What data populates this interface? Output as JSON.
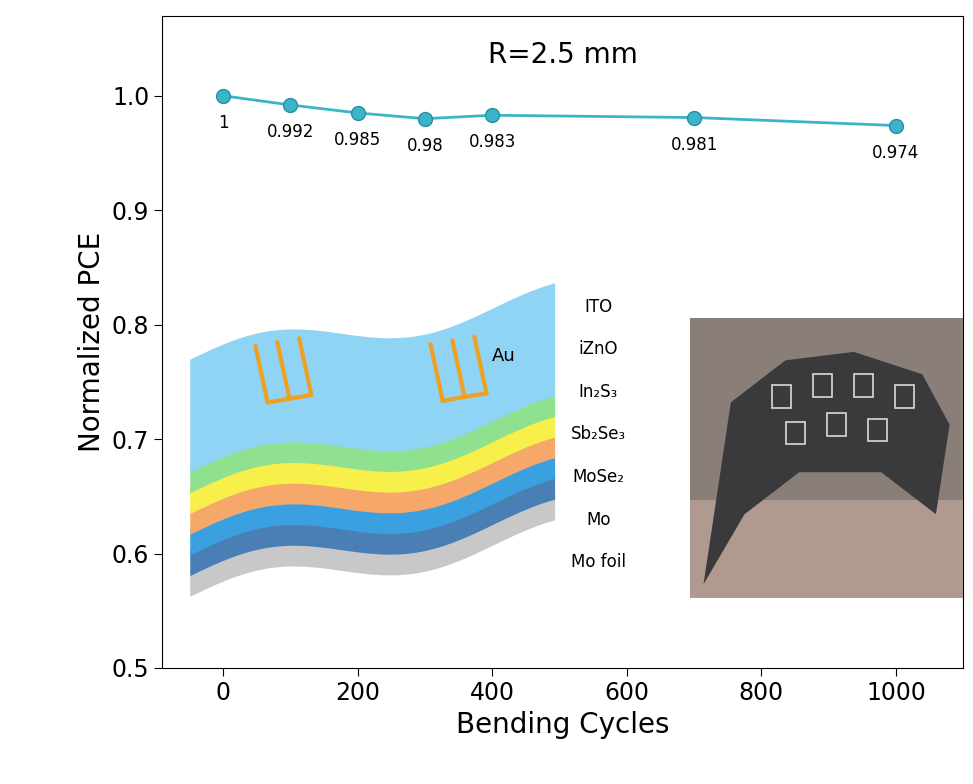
{
  "chart_data": {
    "type": "line",
    "title": "R=2.5 mm",
    "x_label": "Bending Cycles",
    "y_label": "Normalized PCE",
    "x": [
      0,
      100,
      200,
      300,
      400,
      700,
      1000
    ],
    "values": [
      1,
      0.992,
      0.985,
      0.98,
      0.983,
      0.981,
      0.974
    ],
    "color": "#3cb4c8",
    "marker": "o",
    "data_labels": true,
    "xlim": [
      -90,
      1100
    ],
    "xticks": [
      0,
      200,
      400,
      600,
      800,
      1000
    ],
    "ylim": [
      0.5,
      1.07
    ],
    "yticks": [
      0.5,
      0.6,
      0.7,
      0.8,
      0.9,
      1.0
    ],
    "grid": false,
    "inset": {
      "layers": [
        "ITO",
        "iZnO",
        "In₂S₃",
        "Sb₂Se₃",
        "MoSe₂",
        "Mo",
        "Mo foil"
      ],
      "electrode": "Au"
    }
  }
}
